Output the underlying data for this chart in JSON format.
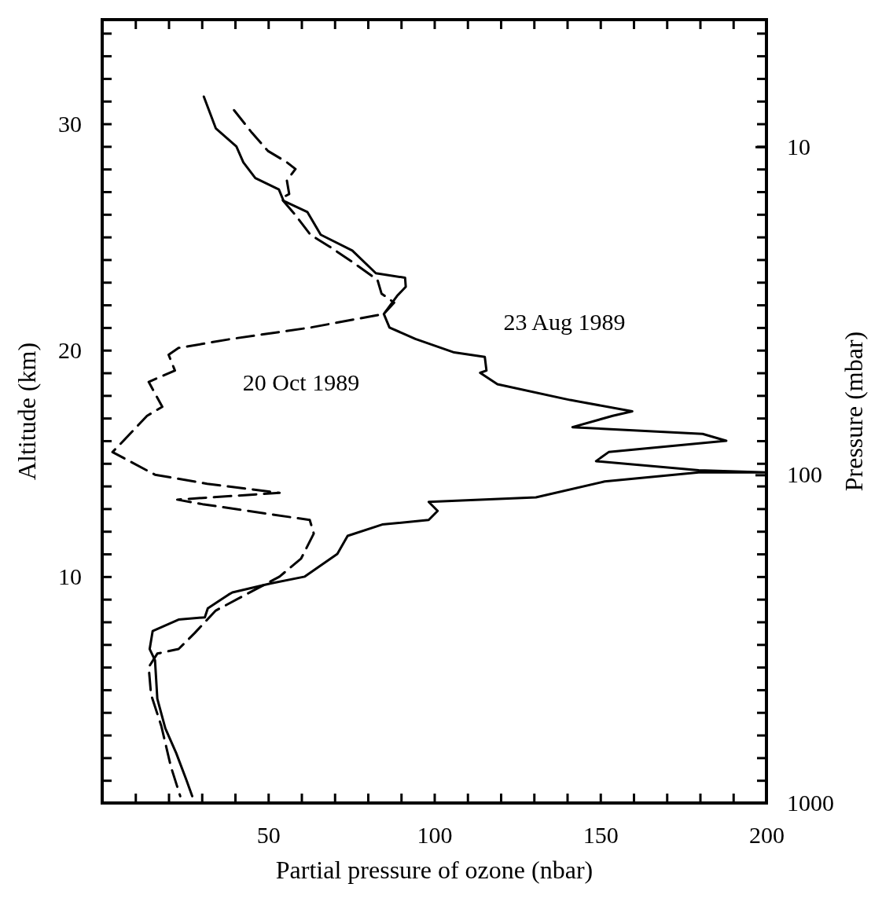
{
  "chart_data": {
    "type": "line",
    "xlabel": "Partial pressure of ozone (nbar)",
    "ylabel": "Altitude (km)",
    "y2label": "Pressure (mbar)",
    "xlim": [
      0,
      200
    ],
    "xticks": [
      {
        "value": 10,
        "label": null
      },
      {
        "value": 20,
        "label": null
      },
      {
        "value": 30,
        "label": null
      },
      {
        "value": 40,
        "label": null
      },
      50,
      {
        "value": 60,
        "label": null
      },
      {
        "value": 70,
        "label": null
      },
      {
        "value": 80,
        "label": null
      },
      {
        "value": 90,
        "label": null
      },
      100,
      {
        "value": 110,
        "label": null
      },
      {
        "value": 120,
        "label": null
      },
      {
        "value": 130,
        "label": null
      },
      {
        "value": 140,
        "label": null
      },
      150,
      {
        "value": 160,
        "label": null
      },
      {
        "value": 170,
        "label": null
      },
      {
        "value": 180,
        "label": null
      },
      {
        "value": 190,
        "label": null
      },
      200
    ],
    "ylim": [
      0,
      34.6
    ],
    "yticks": [
      {
        "value": 1,
        "label": null
      },
      {
        "value": 2,
        "label": null
      },
      {
        "value": 3,
        "label": null
      },
      {
        "value": 4,
        "label": null
      },
      {
        "value": 5,
        "label": null
      },
      {
        "value": 6,
        "label": null
      },
      {
        "value": 7,
        "label": null
      },
      {
        "value": 8,
        "label": null
      },
      {
        "value": 9,
        "label": null
      },
      10,
      {
        "value": 11,
        "label": null
      },
      {
        "value": 12,
        "label": null
      },
      {
        "value": 13,
        "label": null
      },
      {
        "value": 14,
        "label": null
      },
      {
        "value": 15,
        "label": null
      },
      {
        "value": 16,
        "label": null
      },
      {
        "value": 17,
        "label": null
      },
      {
        "value": 18,
        "label": null
      },
      {
        "value": 19,
        "label": null
      },
      20,
      {
        "value": 21,
        "label": null
      },
      {
        "value": 22,
        "label": null
      },
      {
        "value": 23,
        "label": null
      },
      {
        "value": 24,
        "label": null
      },
      {
        "value": 25,
        "label": null
      },
      {
        "value": 26,
        "label": null
      },
      {
        "value": 27,
        "label": null
      },
      {
        "value": 28,
        "label": null
      },
      {
        "value": 29,
        "label": null
      },
      30,
      {
        "value": 31,
        "label": null
      },
      {
        "value": 32,
        "label": null
      },
      {
        "value": 33,
        "label": null
      },
      {
        "value": 34,
        "label": null
      }
    ],
    "log": "y2",
    "y2lim": [
      1000,
      4.1
    ],
    "y2ticks": [
      10,
      100,
      1000
    ],
    "grid": false,
    "legend": false,
    "series": [
      {
        "color": "#000000",
        "line_style": "solid",
        "x": [
          30.6,
          34.2,
          40.4,
          42.5,
          46.1,
          53.2,
          54.6,
          61.8,
          65.8,
          75.3,
          82.4,
          91.2,
          91.4,
          88.8,
          84.8,
          86.5,
          94.3,
          106,
          115.2,
          115.7,
          113.8,
          119,
          140.9,
          159.6,
          153.7,
          141.6,
          180.8,
          187.9,
          152.5,
          148.7,
          179.6,
          200,
          179.6,
          151.3,
          130.6,
          98.3,
          101,
          98.3,
          84.3,
          73.9,
          70.8,
          61.0,
          50.8,
          39.2,
          38.0,
          31.8,
          30.9,
          23.0,
          15.2,
          14.3,
          15.9,
          16.6,
          19.0,
          22.3,
          25.4,
          27.1
        ],
        "values": [
          31.2,
          29.8,
          29.0,
          28.3,
          27.6,
          27.1,
          26.6,
          26.1,
          25.1,
          24.4,
          23.4,
          23.2,
          22.8,
          22.4,
          21.6,
          21.0,
          20.5,
          19.9,
          19.7,
          19.1,
          19.0,
          18.5,
          17.8,
          17.3,
          17.1,
          16.6,
          16.3,
          16.0,
          15.5,
          15.1,
          14.7,
          14.6,
          14.6,
          14.2,
          13.5,
          13.3,
          12.9,
          12.5,
          12.3,
          11.8,
          11.0,
          10.0,
          9.7,
          9.3,
          9.2,
          8.6,
          8.2,
          8.1,
          7.6,
          6.8,
          6.3,
          4.6,
          3.3,
          2.2,
          1.0,
          0.3
        ]
      },
      {
        "color": "#000000",
        "line_style": "dashed",
        "x": [
          39.7,
          45.1,
          49.9,
          55.6,
          58.2,
          55.6,
          56.3,
          53.9,
          58.0,
          62.7,
          68.2,
          75.3,
          82.9,
          84.1,
          87.9,
          84.8,
          62.7,
          39.0,
          23.0,
          20.0,
          21.9,
          14.0,
          18.1,
          13.5,
          6.4,
          3.1,
          15.9,
          31.6,
          53.4,
          22.6,
          30.2,
          62.5,
          63.7,
          59.9,
          53.4,
          34.2,
          27.8,
          23.0,
          16.6,
          14.0,
          14.7,
          17.8,
          20.7,
          23.5
        ],
        "values": [
          30.6,
          29.6,
          28.8,
          28.3,
          28.0,
          27.5,
          26.9,
          26.7,
          26.0,
          25.1,
          24.6,
          23.9,
          23.1,
          22.5,
          22.1,
          21.6,
          21.0,
          20.5,
          20.1,
          19.8,
          19.1,
          18.6,
          17.5,
          17.1,
          16.0,
          15.5,
          14.5,
          14.1,
          13.7,
          13.4,
          13.2,
          12.5,
          11.9,
          10.8,
          10.0,
          8.5,
          7.5,
          6.8,
          6.6,
          6.0,
          4.8,
          3.4,
          1.6,
          0.3
        ]
      }
    ],
    "annotations": [
      "23 Aug 1989",
      "20 Oct 1989"
    ]
  }
}
